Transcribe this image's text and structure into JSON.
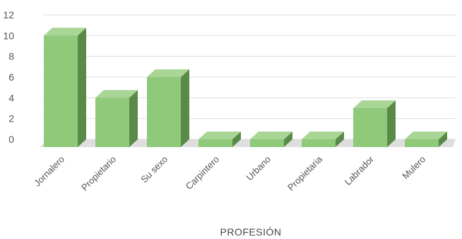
{
  "chart_data": {
    "type": "bar",
    "title": "",
    "xlabel": "PROFESIÓN",
    "ylabel": "",
    "categories": [
      "Jornalero",
      "Propietario",
      "Su sexo",
      "Carpintero",
      "Urbano",
      "Propietaria",
      "Labrador",
      "Mulero"
    ],
    "values": [
      10,
      4,
      6,
      0,
      0,
      0,
      3,
      0
    ],
    "ylim": [
      0,
      12
    ],
    "yticks": [
      0,
      2,
      4,
      6,
      8,
      10,
      12
    ],
    "grid": true,
    "legend": "none",
    "style": "3d-column",
    "colors": {
      "bar_front": "#8fc97a",
      "bar_side": "#5a8a48",
      "bar_top": "#a9d596",
      "grid": "#dddddd",
      "floor": "#dedede"
    }
  }
}
